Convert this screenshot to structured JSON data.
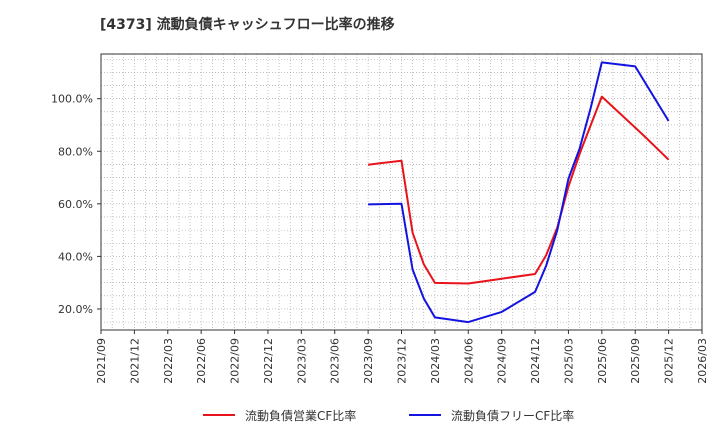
{
  "chart_data": {
    "type": "line",
    "title": "[4373]  流動負債キャッシュフロー比率の推移",
    "xlabel": "",
    "ylabel": "",
    "x_ticks": [
      "2021/09",
      "2021/12",
      "2022/03",
      "2022/06",
      "2022/09",
      "2022/12",
      "2023/03",
      "2023/06",
      "2023/09",
      "2023/12",
      "2024/03",
      "2024/06",
      "2024/09",
      "2024/12",
      "2025/03",
      "2025/06",
      "2025/09",
      "2025/12",
      "2026/03"
    ],
    "y_ticks": [
      "20.0%",
      "40.0%",
      "60.0%",
      "80.0%",
      "100.0%"
    ],
    "y_tick_values": [
      20,
      40,
      60,
      80,
      100
    ],
    "ylim": [
      12,
      117
    ],
    "grid": true,
    "legend_position": "bottom",
    "series": [
      {
        "name": "流動負債営業CF比率",
        "color": "#e8131b",
        "x": [
          "2023/09",
          "2023/12",
          "2024/01",
          "2024/02",
          "2024/03",
          "2024/06",
          "2024/09",
          "2024/12",
          "2025/01",
          "2025/02",
          "2025/03",
          "2025/04",
          "2025/06",
          "2025/09",
          "2025/10",
          "2025/12"
        ],
        "values": [
          74.9,
          76.4,
          49.0,
          37.0,
          29.9,
          29.7,
          31.5,
          33.3,
          40.5,
          51.0,
          66.5,
          79.0,
          100.8,
          89.0,
          85.0,
          76.8
        ]
      },
      {
        "name": "流動負債フリーCF比率",
        "color": "#1414e0",
        "x": [
          "2023/09",
          "2023/12",
          "2024/01",
          "2024/02",
          "2024/03",
          "2024/06",
          "2024/09",
          "2024/12",
          "2025/01",
          "2025/02",
          "2025/03",
          "2025/04",
          "2025/05",
          "2025/06",
          "2025/09",
          "2025/12"
        ],
        "values": [
          59.8,
          60.0,
          35.0,
          24.0,
          16.8,
          15.0,
          18.9,
          26.5,
          36.5,
          50.0,
          69.5,
          81.0,
          96.5,
          113.8,
          112.3,
          91.5
        ]
      }
    ]
  }
}
